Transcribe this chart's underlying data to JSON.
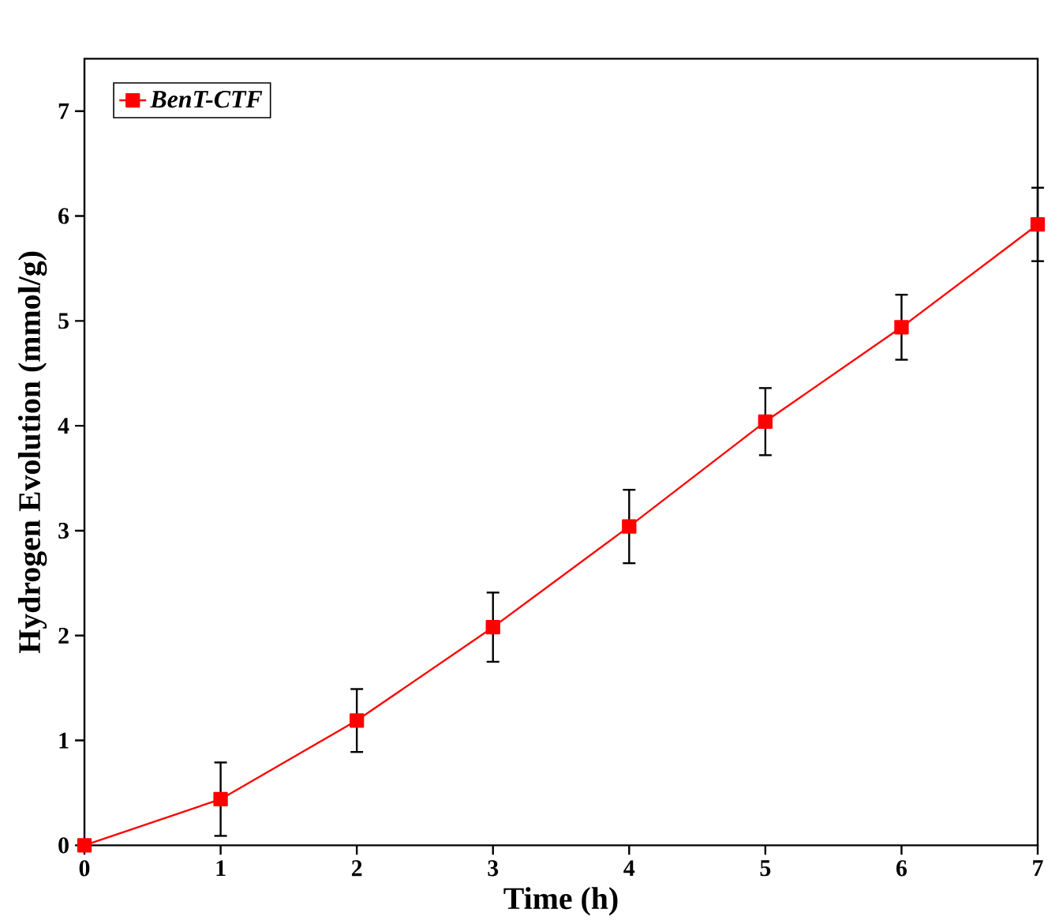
{
  "chart_data": {
    "type": "line",
    "xlabel": "Time (h)",
    "ylabel": "Hydrogen Evolution (mmol/g)",
    "x": [
      0,
      1,
      2,
      3,
      4,
      5,
      6,
      7
    ],
    "series": [
      {
        "name": "BenT-CTF",
        "color": "#ff0000",
        "values": [
          0,
          0.44,
          1.19,
          2.08,
          3.04,
          4.04,
          4.94,
          5.92
        ],
        "errors": [
          null,
          0.35,
          0.3,
          0.33,
          0.35,
          0.32,
          0.31,
          0.35
        ]
      }
    ],
    "xlim": [
      0,
      7
    ],
    "ylim": [
      0,
      7.5
    ],
    "xticks": [
      0,
      1,
      2,
      3,
      4,
      5,
      6,
      7
    ],
    "yticks": [
      0,
      1,
      2,
      3,
      4,
      5,
      6,
      7
    ],
    "marker": "square",
    "line_style": "solid",
    "legend": "top left",
    "grid": false
  }
}
